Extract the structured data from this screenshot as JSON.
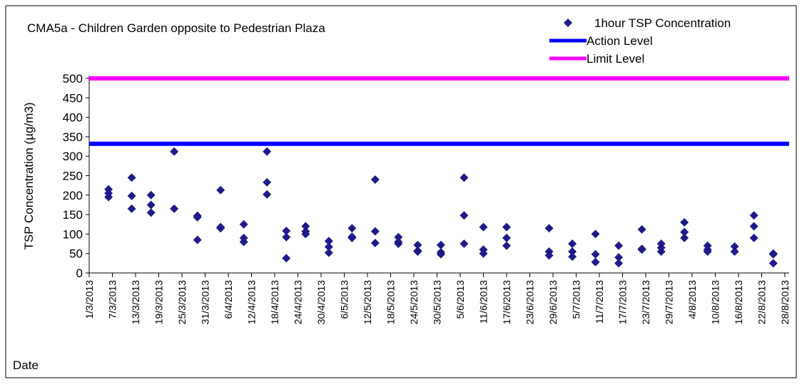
{
  "chart_data": {
    "type": "scatter",
    "title": "CMA5a - Children Garden opposite to Pedestrian Plaza",
    "y_label": "TSP Concentration (µg/m3)",
    "x_label": "Date",
    "xlim": [
      "1/3/2013",
      "28/8/2013"
    ],
    "xticks": [
      "1/3/2013",
      "7/3/2013",
      "13/3/2013",
      "19/3/2013",
      "25/3/2013",
      "31/3/2013",
      "6/4/2013",
      "12/4/2013",
      "18/4/2013",
      "24/4/2013",
      "30/4/2013",
      "6/5/2013",
      "12/5/2013",
      "18/5/2013",
      "24/5/2013",
      "30/5/2013",
      "5/6/2013",
      "11/6/2013",
      "17/6/2013",
      "23/6/2013",
      "29/6/2013",
      "5/7/2013",
      "11/7/2013",
      "17/7/2013",
      "23/7/2013",
      "29/7/2013",
      "4/8/2013",
      "10/8/2013",
      "16/8/2013",
      "22/8/2013",
      "28/8/2013"
    ],
    "ylim": [
      0,
      500
    ],
    "yticks": [
      0,
      50,
      100,
      150,
      200,
      250,
      300,
      350,
      400,
      450,
      500
    ],
    "series": [
      {
        "name": "1hour TSP Concentration",
        "color": "#1f1a8a",
        "x": [
          "6/3/2013",
          "6/3/2013",
          "6/3/2013",
          "12/3/2013",
          "12/3/2013",
          "12/3/2013",
          "17/3/2013",
          "17/3/2013",
          "17/3/2013",
          "23/3/2013",
          "23/3/2013",
          "29/3/2013",
          "29/3/2013",
          "29/3/2013",
          "4/4/2013",
          "4/4/2013",
          "4/4/2013",
          "10/4/2013",
          "10/4/2013",
          "10/4/2013",
          "16/4/2013",
          "16/4/2013",
          "16/4/2013",
          "21/4/2013",
          "21/4/2013",
          "21/4/2013",
          "26/4/2013",
          "26/4/2013",
          "26/4/2013",
          "2/5/2013",
          "2/5/2013",
          "2/5/2013",
          "8/5/2013",
          "8/5/2013",
          "8/5/2013",
          "14/5/2013",
          "14/5/2013",
          "14/5/2013",
          "20/5/2013",
          "20/5/2013",
          "20/5/2013",
          "25/5/2013",
          "25/5/2013",
          "25/5/2013",
          "31/5/2013",
          "31/5/2013",
          "31/5/2013",
          "6/6/2013",
          "6/6/2013",
          "6/6/2013",
          "11/6/2013",
          "11/6/2013",
          "11/6/2013",
          "17/6/2013",
          "17/6/2013",
          "17/6/2013",
          "28/6/2013",
          "28/6/2013",
          "28/6/2013",
          "4/7/2013",
          "4/7/2013",
          "4/7/2013",
          "10/7/2013",
          "10/7/2013",
          "10/7/2013",
          "16/7/2013",
          "16/7/2013",
          "16/7/2013",
          "22/7/2013",
          "22/7/2013",
          "22/7/2013",
          "27/7/2013",
          "27/7/2013",
          "27/7/2013",
          "2/8/2013",
          "2/8/2013",
          "2/8/2013",
          "8/8/2013",
          "8/8/2013",
          "8/8/2013",
          "15/8/2013",
          "15/8/2013",
          "20/8/2013",
          "20/8/2013",
          "20/8/2013",
          "25/8/2013",
          "25/8/2013",
          "25/8/2013"
        ],
        "values": [
          215,
          205,
          195,
          245,
          198,
          165,
          200,
          175,
          155,
          312,
          165,
          147,
          143,
          85,
          213,
          118,
          115,
          125,
          90,
          80,
          312,
          233,
          202,
          108,
          92,
          38,
          120,
          107,
          100,
          82,
          67,
          52,
          115,
          93,
          90,
          240,
          107,
          77,
          92,
          80,
          75,
          72,
          57,
          55,
          72,
          53,
          48,
          245,
          148,
          75,
          118,
          60,
          50,
          118,
          90,
          70,
          115,
          55,
          45,
          75,
          55,
          42,
          100,
          48,
          28,
          70,
          40,
          25,
          112,
          62,
          60,
          75,
          65,
          55,
          130,
          105,
          90,
          70,
          60,
          55,
          68,
          55,
          148,
          120,
          90,
          50,
          48,
          25
        ]
      },
      {
        "name": "Action Level",
        "type": "hline",
        "color": "#0000ff",
        "value": 332
      },
      {
        "name": "Limit Level",
        "type": "hline",
        "color": "#ff00ff",
        "value": 500
      }
    ]
  }
}
